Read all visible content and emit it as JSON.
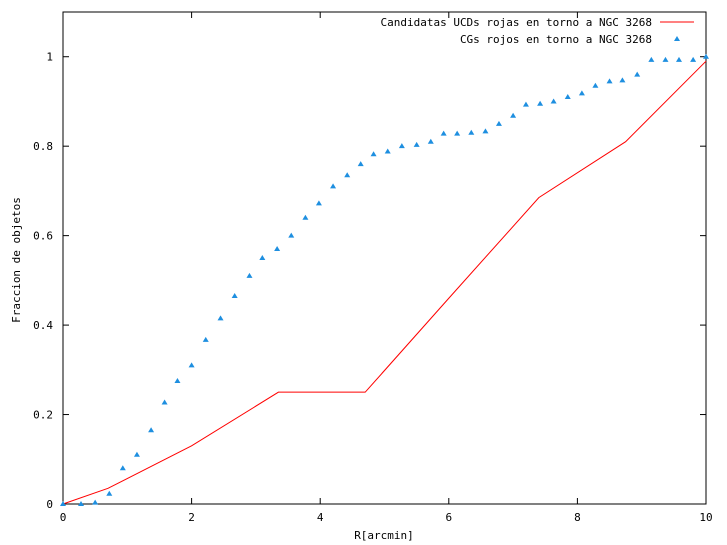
{
  "chart_data": {
    "type": "line",
    "title": "",
    "xlabel": "R[arcmin]",
    "ylabel": "Fraccion de objetos",
    "xlim": [
      0,
      10
    ],
    "ylim": [
      0,
      1.1
    ],
    "xticks": [
      0,
      2,
      4,
      6,
      8,
      10
    ],
    "yticks": [
      0,
      0.2,
      0.4,
      0.6,
      0.8,
      1
    ],
    "xtick_labels": [
      "0",
      "2",
      "4",
      "6",
      "8",
      "10"
    ],
    "ytick_labels": [
      "0",
      "0.2",
      "0.4",
      "0.6",
      "0.8",
      "1"
    ],
    "grid": false,
    "legend_position": "top-right",
    "series": [
      {
        "name": "Candidatas UCDs rojas en torno a NGC 3268",
        "style": "line",
        "color": "#ff0000",
        "x": [
          0,
          0.7,
          2.0,
          3.35,
          4.7,
          6.0,
          7.4,
          8.75,
          10.0
        ],
        "y": [
          0,
          0.035,
          0.13,
          0.25,
          0.25,
          0.46,
          0.685,
          0.81,
          0.99
        ]
      },
      {
        "name": "CGs rojos en torno a NGC 3268",
        "style": "points",
        "color": "#1e8fe0",
        "x": [
          0,
          0.28,
          0.5,
          0.72,
          0.93,
          1.15,
          1.37,
          1.58,
          1.78,
          2.0,
          2.22,
          2.45,
          2.67,
          2.9,
          3.1,
          3.33,
          3.55,
          3.77,
          3.98,
          4.2,
          4.42,
          4.63,
          4.83,
          5.05,
          5.27,
          5.5,
          5.72,
          5.92,
          6.13,
          6.35,
          6.57,
          6.78,
          7.0,
          7.2,
          7.42,
          7.63,
          7.85,
          8.07,
          8.28,
          8.5,
          8.7,
          8.93,
          9.15,
          9.37,
          9.58,
          9.8,
          10.0
        ],
        "y": [
          0,
          0.0,
          0.003,
          0.023,
          0.08,
          0.11,
          0.165,
          0.227,
          0.275,
          0.31,
          0.367,
          0.415,
          0.465,
          0.51,
          0.55,
          0.57,
          0.6,
          0.64,
          0.672,
          0.71,
          0.735,
          0.76,
          0.782,
          0.788,
          0.8,
          0.803,
          0.81,
          0.828,
          0.828,
          0.83,
          0.833,
          0.85,
          0.868,
          0.893,
          0.895,
          0.9,
          0.91,
          0.918,
          0.935,
          0.945,
          0.947,
          0.96,
          0.993,
          0.993,
          0.993,
          0.993,
          1.0
        ]
      }
    ]
  }
}
